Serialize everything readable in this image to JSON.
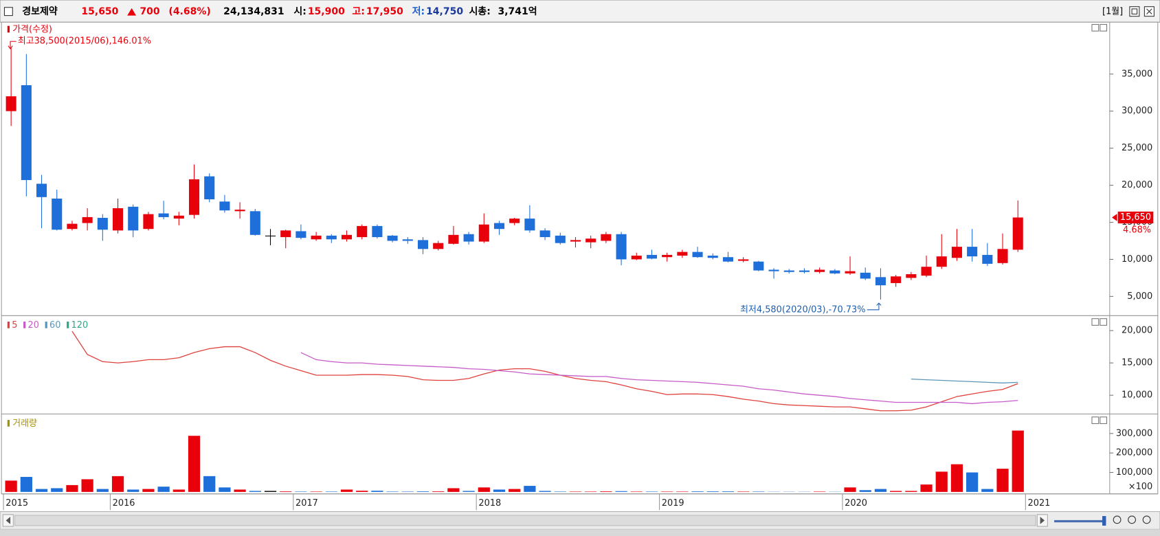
{
  "header": {
    "name": "경보제약",
    "price": "15,650",
    "change": "700",
    "change_rate": "(4.68%)",
    "volume": "24,134,831",
    "open_label": "시:",
    "open": "15,900",
    "high_label": "고:",
    "high": "17,950",
    "low_label": "저:",
    "low": "14,750",
    "cap_label": "시총:",
    "cap": "3,741억",
    "period": "[1월]"
  },
  "chart_data": [
    {
      "type": "candlestick",
      "legend": "가격(수정)",
      "categories": [
        "2015",
        null,
        null,
        null,
        null,
        null,
        null,
        "2016",
        null,
        null,
        null,
        null,
        null,
        null,
        null,
        null,
        null,
        null,
        null,
        "2017",
        null,
        null,
        null,
        null,
        null,
        null,
        null,
        null,
        null,
        null,
        null,
        "2018",
        null,
        null,
        null,
        null,
        null,
        null,
        null,
        null,
        null,
        null,
        null,
        "2019",
        null,
        null,
        null,
        null,
        null,
        null,
        null,
        null,
        null,
        null,
        null,
        "2020",
        null,
        null,
        null,
        null,
        null,
        null,
        null,
        null,
        null,
        null,
        null,
        "2021"
      ],
      "open": [
        30000,
        33500,
        20200,
        18200,
        14100,
        14900,
        15600,
        13900,
        17100,
        14100,
        16200,
        15500,
        16000,
        21200,
        17800,
        16500,
        16500,
        13200,
        13000,
        13800,
        12700,
        13200,
        12700,
        13000,
        14500,
        13200,
        12700,
        12600,
        11400,
        12100,
        13400,
        12400,
        14900,
        14900,
        15500,
        13900,
        13200,
        12400,
        12300,
        12500,
        13400,
        10000,
        10600,
        10300,
        10500,
        11000,
        10500,
        10300,
        9800,
        9700,
        8600,
        8500,
        8500,
        8300,
        8500,
        8100,
        8200,
        7600,
        6800,
        7500,
        7800,
        9000,
        10200,
        11700,
        10600,
        9500,
        11300,
        null
      ],
      "close": [
        32000,
        20700,
        18400,
        14000,
        14800,
        15700,
        14000,
        16900,
        13900,
        16100,
        15700,
        15900,
        20800,
        18100,
        16600,
        16700,
        13300,
        13200,
        13900,
        12900,
        13200,
        12700,
        13300,
        14500,
        13000,
        12500,
        12500,
        11400,
        12200,
        13300,
        12400,
        14700,
        14100,
        15500,
        13900,
        13000,
        12200,
        12600,
        12800,
        13400,
        10000,
        10500,
        10100,
        10600,
        11000,
        10300,
        10200,
        9700,
        10000,
        8500,
        8400,
        8300,
        8300,
        8600,
        8100,
        8400,
        7400,
        6500,
        7700,
        8000,
        9000,
        10400,
        11700,
        10400,
        9400,
        11400,
        15650,
        null
      ],
      "high": [
        38500,
        37700,
        21400,
        19400,
        15200,
        16900,
        16100,
        18200,
        17400,
        16400,
        17900,
        16400,
        22800,
        21600,
        18700,
        17700,
        16800,
        14100,
        14000,
        14700,
        13700,
        13400,
        13900,
        14700,
        14700,
        13300,
        13000,
        13000,
        12500,
        14500,
        13700,
        16200,
        15200,
        15600,
        17300,
        14200,
        13600,
        13000,
        13200,
        13700,
        13700,
        10900,
        11300,
        10900,
        11300,
        11700,
        10800,
        11000,
        10300,
        9800,
        8800,
        8700,
        8800,
        8900,
        8700,
        10400,
        8900,
        8800,
        7900,
        8300,
        10500,
        13400,
        14100,
        14100,
        12200,
        13500,
        17950,
        null
      ],
      "low": [
        28000,
        18500,
        14200,
        13900,
        13900,
        13900,
        12500,
        13500,
        13000,
        13900,
        15400,
        14600,
        15500,
        17700,
        16300,
        15500,
        13200,
        11900,
        11500,
        12700,
        12500,
        12200,
        12400,
        12700,
        12800,
        12300,
        12100,
        10700,
        11200,
        12000,
        12000,
        12200,
        13300,
        14600,
        13600,
        12600,
        12000,
        11600,
        11500,
        12200,
        9200,
        9900,
        10000,
        9700,
        10200,
        10200,
        10000,
        9600,
        9600,
        8400,
        7400,
        8100,
        8100,
        8100,
        8000,
        7900,
        7200,
        4580,
        6300,
        7200,
        7600,
        8700,
        9800,
        9700,
        9100,
        9300,
        11000,
        null
      ],
      "up_color": "#e8000b",
      "down_color": "#1e6fd9",
      "flat_color": "#000000",
      "ylim": [
        2400,
        42000
      ],
      "yticks": [
        {
          "value": 5000,
          "label": "5,000"
        },
        {
          "value": 10000,
          "label": "10,000"
        },
        {
          "value": 15000,
          "label": "15,000"
        },
        {
          "value": 20000,
          "label": "20,000"
        },
        {
          "value": 25000,
          "label": "25,000"
        },
        {
          "value": 30000,
          "label": "30,000"
        },
        {
          "value": 35000,
          "label": "35,000"
        }
      ],
      "annotations": [
        "최고38,500(2015/06),146.01%",
        "최저4,580(2020/03),-70.73%"
      ],
      "last_price": {
        "value": 15650,
        "label": "15,650"
      },
      "last_rate": "4.68%"
    },
    {
      "type": "line",
      "series": [
        {
          "name": "5",
          "color": "#e0403c",
          "values": [
            null,
            null,
            null,
            null,
            19900,
            16300,
            15200,
            15000,
            15200,
            15500,
            15500,
            15800,
            16600,
            17200,
            17500,
            17500,
            16600,
            15400,
            14500,
            13800,
            13100,
            13100,
            13100,
            13200,
            13200,
            13100,
            12900,
            12400,
            12300,
            12300,
            12600,
            13300,
            13900,
            14100,
            14100,
            13700,
            13100,
            12600,
            12300,
            12100,
            11600,
            11000,
            10600,
            10100,
            10200,
            10200,
            10100,
            9800,
            9400,
            9100,
            8700,
            8500,
            8400,
            8300,
            8200,
            8200,
            7900,
            7600,
            7600,
            7700,
            8200,
            9000,
            9800,
            10200,
            10600,
            10900,
            11800,
            null
          ]
        },
        {
          "name": "20",
          "color": "#c65ac8",
          "values": [
            null,
            null,
            null,
            null,
            null,
            null,
            null,
            null,
            null,
            null,
            null,
            null,
            null,
            null,
            null,
            null,
            null,
            null,
            null,
            16600,
            15500,
            15200,
            15000,
            15000,
            14800,
            14700,
            14600,
            14500,
            14400,
            14300,
            14100,
            14000,
            13800,
            13600,
            13300,
            13200,
            13100,
            13000,
            12900,
            12900,
            12600,
            12400,
            12300,
            12200,
            12100,
            12000,
            11800,
            11600,
            11400,
            11000,
            10800,
            10500,
            10200,
            10000,
            9800,
            9500,
            9300,
            9100,
            8900,
            8900,
            8900,
            8900,
            8900,
            8700,
            8900,
            9000,
            9200,
            null
          ]
        },
        {
          "name": "60",
          "color": "#5a96b8",
          "values": [
            null,
            null,
            null,
            null,
            null,
            null,
            null,
            null,
            null,
            null,
            null,
            null,
            null,
            null,
            null,
            null,
            null,
            null,
            null,
            null,
            null,
            null,
            null,
            null,
            null,
            null,
            null,
            null,
            null,
            null,
            null,
            null,
            null,
            null,
            null,
            null,
            null,
            null,
            null,
            null,
            null,
            null,
            null,
            null,
            null,
            null,
            null,
            null,
            null,
            null,
            null,
            null,
            null,
            null,
            null,
            null,
            null,
            null,
            null,
            12500,
            12400,
            12300,
            12200,
            12100,
            12000,
            11900,
            12000,
            null
          ]
        },
        {
          "name": "120",
          "color": "#2fa888",
          "values": [
            null,
            null,
            null,
            null,
            null,
            null,
            null,
            null,
            null,
            null,
            null,
            null,
            null,
            null,
            null,
            null,
            null,
            null,
            null,
            null,
            null,
            null,
            null,
            null,
            null,
            null,
            null,
            null,
            null,
            null,
            null,
            null,
            null,
            null,
            null,
            null,
            null,
            null,
            null,
            null,
            null,
            null,
            null,
            null,
            null,
            null,
            null,
            null,
            null,
            null,
            null,
            null,
            null,
            null,
            null,
            null,
            null,
            null,
            null,
            null,
            null,
            null,
            null,
            null,
            null,
            null,
            null,
            null
          ]
        }
      ],
      "ylim": [
        7100,
        22300
      ],
      "yticks": [
        {
          "value": 10000,
          "label": "10,000"
        },
        {
          "value": 15000,
          "label": "15,000"
        },
        {
          "value": 20000,
          "label": "20,000"
        }
      ]
    },
    {
      "type": "bar",
      "legend": "거래량",
      "legend_color": "#a89000",
      "unit": "×100",
      "values": [
        58000,
        77000,
        15000,
        19000,
        35000,
        65000,
        15000,
        81000,
        12000,
        15000,
        27000,
        12000,
        288000,
        81000,
        23000,
        12000,
        5000,
        5000,
        3000,
        2000,
        2000,
        2000,
        12000,
        6000,
        6000,
        2000,
        2000,
        3000,
        3000,
        19000,
        5000,
        23000,
        12000,
        15000,
        31000,
        5000,
        2000,
        2000,
        2000,
        3000,
        4000,
        2000,
        2000,
        2000,
        2000,
        3000,
        3000,
        3000,
        2000,
        2000,
        1000,
        1000,
        1000,
        2000,
        1000,
        23000,
        9000,
        15000,
        5000,
        5000,
        38000,
        104000,
        142000,
        100000,
        15000,
        119000,
        315000,
        null
      ],
      "ylim": [
        -10000,
        400000
      ],
      "yticks": [
        {
          "value": 100000,
          "label": "100,000"
        },
        {
          "value": 200000,
          "label": "200,000"
        },
        {
          "value": 300000,
          "label": "300,000"
        }
      ]
    }
  ]
}
